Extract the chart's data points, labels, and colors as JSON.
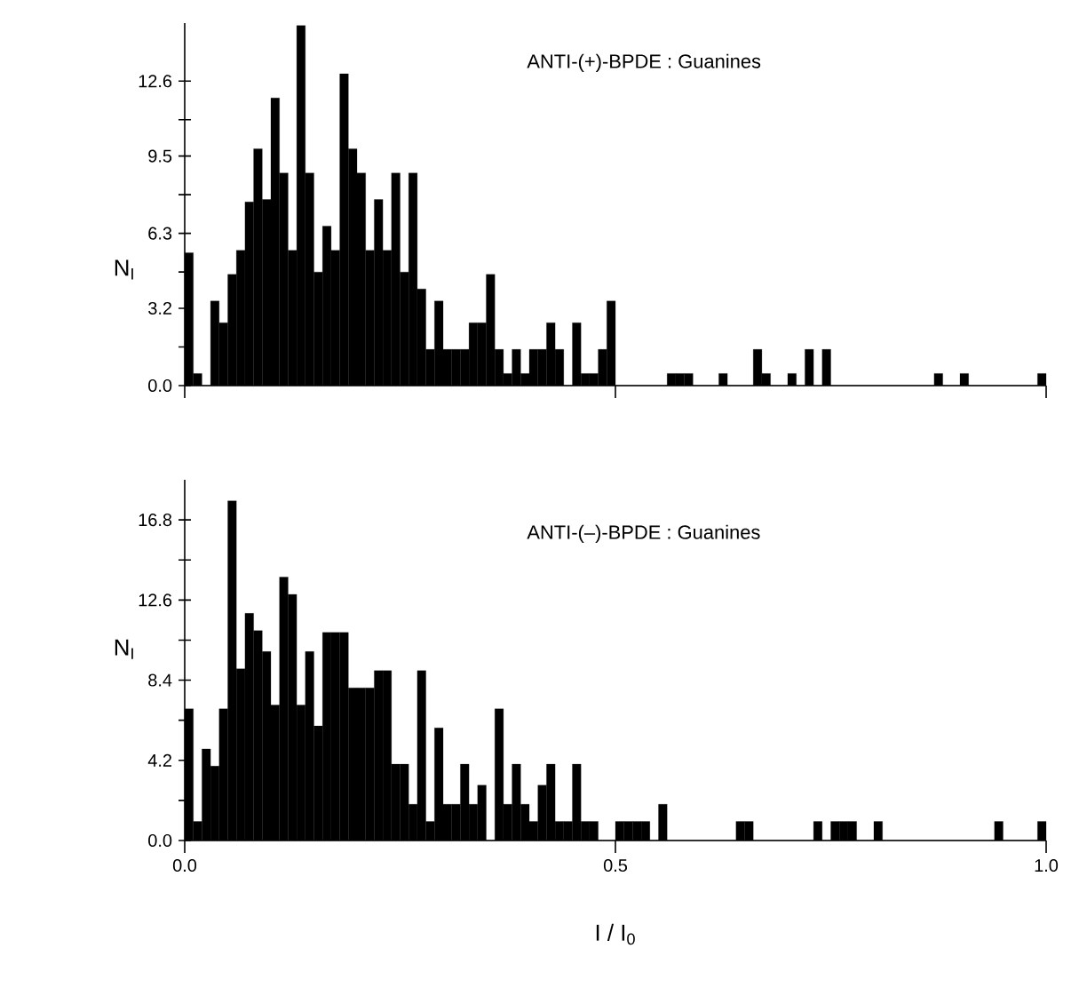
{
  "chart_data": [
    {
      "type": "histogram",
      "title": "ANTI-(+)-BPDE : Guanines",
      "ylabel": "N$_{I}$",
      "color": "#000000",
      "tick_labels": "y",
      "bins": [
        0,
        0.01,
        0.02,
        0.03,
        0.04,
        0.05,
        0.06,
        0.07,
        0.08,
        0.09,
        0.1,
        0.11,
        0.12,
        0.13,
        0.14,
        0.15,
        0.16,
        0.17,
        0.18,
        0.19,
        0.2,
        0.21,
        0.22,
        0.23,
        0.24,
        0.25,
        0.26,
        0.27,
        0.28,
        0.29,
        0.3,
        0.31,
        0.32,
        0.33,
        0.34,
        0.35,
        0.36,
        0.37,
        0.38,
        0.39,
        0.4,
        0.41,
        0.42,
        0.43,
        0.44,
        0.45,
        0.46,
        0.47,
        0.48,
        0.49,
        0.5,
        0.51,
        0.52,
        0.53,
        0.54,
        0.55,
        0.56,
        0.57,
        0.58,
        0.59,
        0.6,
        0.61,
        0.62,
        0.63,
        0.64,
        0.65,
        0.66,
        0.67,
        0.68,
        0.69,
        0.7,
        0.71,
        0.72,
        0.73,
        0.74,
        0.75,
        0.76,
        0.77,
        0.78,
        0.79,
        0.8,
        0.81,
        0.82,
        0.83,
        0.84,
        0.85,
        0.86,
        0.87,
        0.88,
        0.89,
        0.9,
        0.91,
        0.92,
        0.93,
        0.94,
        0.95,
        0.96,
        0.97,
        0.98,
        0.99,
        1.0
      ],
      "values": [
        5.5,
        0.5,
        0,
        3.5,
        2.6,
        4.6,
        5.6,
        7.6,
        9.8,
        7.7,
        11.9,
        8.8,
        5.6,
        14.9,
        8.8,
        4.7,
        6.6,
        5.6,
        12.9,
        9.8,
        8.8,
        5.6,
        7.7,
        5.6,
        8.8,
        4.7,
        8.8,
        4.0,
        1.5,
        3.5,
        1.5,
        1.5,
        1.5,
        2.6,
        2.6,
        4.6,
        1.5,
        0.5,
        1.5,
        0.5,
        1.5,
        1.5,
        2.6,
        1.5,
        0,
        2.6,
        0.5,
        0.5,
        1.5,
        3.5,
        0,
        0,
        0,
        0,
        0,
        0,
        0.5,
        0.5,
        0.5,
        0,
        0,
        0,
        0.5,
        0,
        0,
        0,
        1.5,
        0.5,
        0,
        0,
        0.5,
        0,
        1.5,
        0,
        1.5,
        0,
        0,
        0,
        0,
        0,
        0,
        0,
        0,
        0,
        0,
        0,
        0,
        0.5,
        0,
        0,
        0.5,
        0,
        0,
        0,
        0,
        0,
        0,
        0,
        0,
        0.5
      ],
      "xlim": [
        0,
        1
      ],
      "xticks": [
        {
          "value": 0,
          "label": null
        },
        {
          "value": 0.5,
          "label": null
        },
        {
          "value": 1,
          "label": null
        }
      ],
      "ylim": [
        0,
        15
      ],
      "yticks": [
        {
          "value": 0,
          "label": "0.0"
        },
        {
          "value": 1.6,
          "label": null
        },
        3.2,
        {
          "value": 4.7,
          "label": null
        },
        6.3,
        {
          "value": 7.9,
          "label": null
        },
        9.5,
        {
          "value": 11.0,
          "label": null
        },
        12.6
      ]
    },
    {
      "type": "histogram",
      "title": "ANTI-(–)-BPDE : Guanines",
      "ylabel": "N$_{I}$",
      "xlabel": "I / I$_{0}$",
      "color": "#000000",
      "bins": [
        0,
        0.01,
        0.02,
        0.03,
        0.04,
        0.05,
        0.06,
        0.07,
        0.08,
        0.09,
        0.1,
        0.11,
        0.12,
        0.13,
        0.14,
        0.15,
        0.16,
        0.17,
        0.18,
        0.19,
        0.2,
        0.21,
        0.22,
        0.23,
        0.24,
        0.25,
        0.26,
        0.27,
        0.28,
        0.29,
        0.3,
        0.31,
        0.32,
        0.33,
        0.34,
        0.35,
        0.36,
        0.37,
        0.38,
        0.39,
        0.4,
        0.41,
        0.42,
        0.43,
        0.44,
        0.45,
        0.46,
        0.47,
        0.48,
        0.49,
        0.5,
        0.51,
        0.52,
        0.53,
        0.54,
        0.55,
        0.56,
        0.57,
        0.58,
        0.59,
        0.6,
        0.61,
        0.62,
        0.63,
        0.64,
        0.65,
        0.66,
        0.67,
        0.68,
        0.69,
        0.7,
        0.71,
        0.72,
        0.73,
        0.74,
        0.75,
        0.76,
        0.77,
        0.78,
        0.79,
        0.8,
        0.81,
        0.82,
        0.83,
        0.84,
        0.85,
        0.86,
        0.87,
        0.88,
        0.89,
        0.9,
        0.91,
        0.92,
        0.93,
        0.94,
        0.95,
        0.96,
        0.97,
        0.98,
        0.99,
        1.0
      ],
      "values": [
        6.9,
        1.0,
        4.8,
        3.9,
        6.9,
        17.8,
        9.0,
        11.9,
        11.0,
        9.9,
        7.1,
        13.8,
        12.9,
        7.1,
        9.9,
        6.0,
        10.9,
        10.9,
        10.9,
        8.0,
        8.0,
        8.0,
        8.9,
        8.9,
        4.0,
        4.0,
        1.9,
        8.9,
        1.0,
        5.9,
        1.9,
        1.9,
        4.0,
        1.9,
        2.9,
        0,
        6.9,
        1.9,
        4.0,
        1.9,
        1.0,
        2.9,
        4.0,
        1.0,
        1.0,
        4.0,
        1.0,
        1.0,
        0,
        0,
        1.0,
        1.0,
        1.0,
        1.0,
        0,
        1.9,
        0,
        0,
        0,
        0,
        0,
        0,
        0,
        0,
        1.0,
        1.0,
        0,
        0,
        0,
        0,
        0,
        0,
        0,
        1.0,
        0,
        1.0,
        1.0,
        1.0,
        0,
        0,
        1.0,
        0,
        0,
        0,
        0,
        0,
        0,
        0,
        0,
        0,
        0,
        0,
        0,
        0,
        1.0,
        0,
        0,
        0,
        0,
        1.0
      ],
      "xlim": [
        0,
        1
      ],
      "xticks": [
        {
          "value": 0,
          "label": "0.0"
        },
        0.5,
        {
          "value": 1,
          "label": "1.0"
        }
      ],
      "ylim": [
        0,
        18.9
      ],
      "yticks": [
        {
          "value": 0,
          "label": "0.0"
        },
        {
          "value": 2.1,
          "label": null
        },
        4.2,
        {
          "value": 6.3,
          "label": null
        },
        8.4,
        {
          "value": 10.5,
          "label": null
        },
        12.6,
        {
          "value": 14.7,
          "label": null
        },
        16.8
      ]
    }
  ]
}
